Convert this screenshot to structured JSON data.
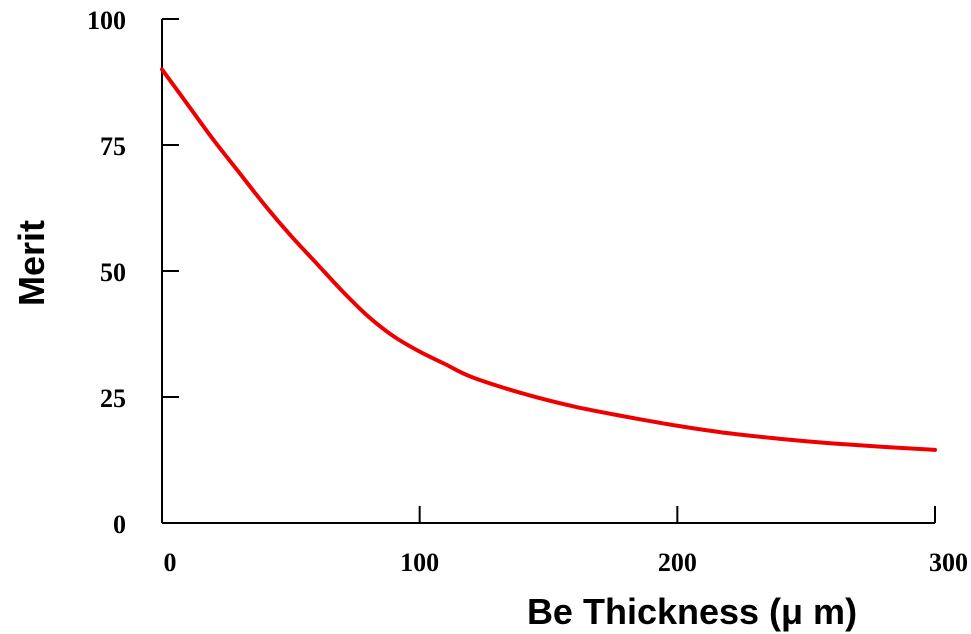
{
  "chart_data": {
    "type": "line",
    "xlabel": "Be  Thickness  (μ m)",
    "ylabel": "Merit",
    "xlim": [
      0,
      300
    ],
    "ylim": [
      0,
      100
    ],
    "x_ticks": [
      0,
      100,
      200,
      300
    ],
    "y_ticks": [
      0,
      25,
      50,
      75,
      100
    ],
    "x_tick_labels": [
      "0",
      "100",
      "200",
      "300"
    ],
    "y_tick_labels": [
      "0",
      "25",
      "50",
      "75",
      "100"
    ],
    "grid": false,
    "series": [
      {
        "color": "#ee0000",
        "x": [
          0,
          10,
          20,
          30,
          40,
          50,
          60,
          70,
          80,
          90,
          100,
          110,
          120,
          140,
          160,
          180,
          200,
          220,
          240,
          260,
          280,
          300
        ],
        "y": [
          90,
          83,
          76,
          69.5,
          63,
          57,
          51.5,
          46,
          41,
          37,
          34,
          31.5,
          29,
          25.7,
          23.1,
          21.1,
          19.3,
          17.8,
          16.7,
          15.8,
          15.1,
          14.5
        ]
      }
    ]
  }
}
